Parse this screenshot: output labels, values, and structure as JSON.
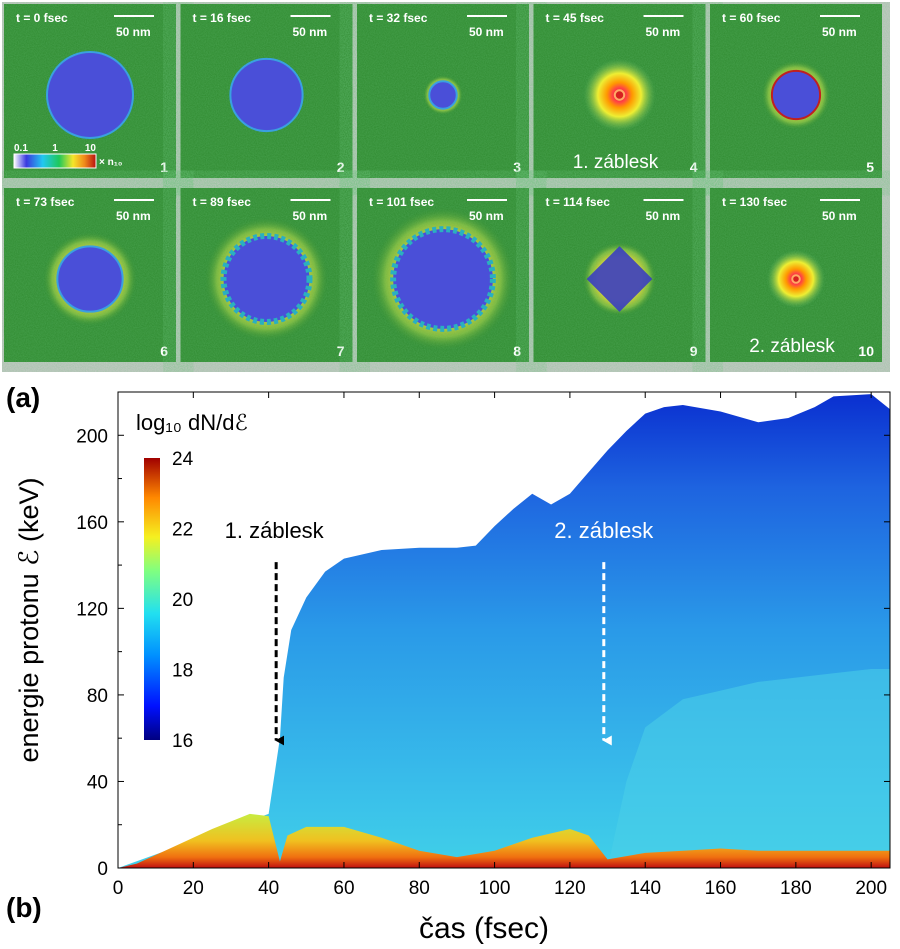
{
  "panel_labels": {
    "a": "(a)",
    "b": "(b)"
  },
  "panels": [
    {
      "time": "t = 0 fsec",
      "index": "1",
      "annotation": "",
      "blob": "solid",
      "r": 0.5
    },
    {
      "time": "t = 16 fsec",
      "index": "2",
      "annotation": "",
      "blob": "solid",
      "r": 0.42
    },
    {
      "time": "t = 32 fsec",
      "index": "3",
      "annotation": "",
      "blob": "small",
      "r": 0.16
    },
    {
      "time": "t = 45 fsec",
      "index": "4",
      "annotation": "1. záblesk",
      "blob": "flash",
      "r": 0.1
    },
    {
      "time": "t = 60 fsec",
      "index": "5",
      "annotation": "",
      "blob": "ring",
      "r": 0.28
    },
    {
      "time": "t = 73 fsec",
      "index": "6",
      "annotation": "",
      "blob": "solid",
      "r": 0.38
    },
    {
      "time": "t = 89 fsec",
      "index": "7",
      "annotation": "",
      "blob": "frayed",
      "r": 0.5
    },
    {
      "time": "t = 101 fsec",
      "index": "8",
      "annotation": "",
      "blob": "frayed",
      "r": 0.58
    },
    {
      "time": "t = 114 fsec",
      "index": "9",
      "annotation": "",
      "blob": "diamond",
      "r": 0.3
    },
    {
      "time": "t = 130 fsec",
      "index": "10",
      "annotation": "2. záblesk",
      "blob": "flash",
      "r": 0.08
    }
  ],
  "scale_bar_label": "50 nm",
  "panel_colorbar": {
    "ticks": [
      "0.1",
      "1",
      "10"
    ],
    "unit": "× n₁₀"
  },
  "colors": {
    "background_green": "#2f8a2f",
    "cluster_blue": "#4a4fd8",
    "flash_red": "#d62020",
    "panel_border": "#c8c8c8",
    "arrow_black": "#000000",
    "arrow_white": "#ffffff"
  },
  "chart_data": {
    "type": "heatmap",
    "xlabel": "čas (fsec)",
    "ylabel": "energie protonu  ℰ (keV)",
    "xlim": [
      0,
      205
    ],
    "ylim": [
      0,
      220
    ],
    "xticks": [
      0,
      20,
      40,
      60,
      80,
      100,
      120,
      140,
      160,
      180,
      200
    ],
    "yticks": [
      0,
      40,
      80,
      120,
      160,
      200
    ],
    "colorbar": {
      "title": "log₁₀ dN/dℰ",
      "range": [
        16,
        24
      ],
      "ticks": [
        16,
        18,
        20,
        22,
        24
      ]
    },
    "max_energy_envelope": {
      "x": [
        0,
        40,
        43,
        44,
        46,
        50,
        55,
        60,
        70,
        80,
        90,
        95,
        100,
        105,
        110,
        115,
        120,
        125,
        130,
        135,
        140,
        145,
        150,
        160,
        170,
        178,
        185,
        190,
        200,
        205
      ],
      "y": [
        0,
        25,
        60,
        88,
        110,
        125,
        137,
        143,
        147,
        148,
        148,
        149,
        158,
        166,
        173,
        168,
        173,
        183,
        193,
        202,
        210,
        213,
        214,
        211,
        206,
        208,
        213,
        218,
        219,
        212
      ]
    },
    "low_energy_band": {
      "x": [
        0,
        5,
        15,
        25,
        35,
        40,
        43,
        45,
        50,
        60,
        70,
        80,
        90,
        100,
        110,
        120,
        125,
        130,
        140,
        150,
        160,
        170,
        180,
        190,
        200,
        205
      ],
      "y": [
        0,
        2,
        10,
        18,
        25,
        24,
        3,
        15,
        19,
        19,
        14,
        8,
        5,
        8,
        14,
        18,
        15,
        4,
        7,
        8,
        9,
        8,
        8,
        8,
        8,
        8
      ]
    },
    "annotations": [
      {
        "text": "1. záblesk",
        "x": 42,
        "arrow_from_y": 158,
        "arrow_to_y": 58,
        "color": "black"
      },
      {
        "text": "2. záblesk",
        "x": 129,
        "arrow_from_y": 158,
        "arrow_to_y": 58,
        "color": "white"
      }
    ]
  }
}
